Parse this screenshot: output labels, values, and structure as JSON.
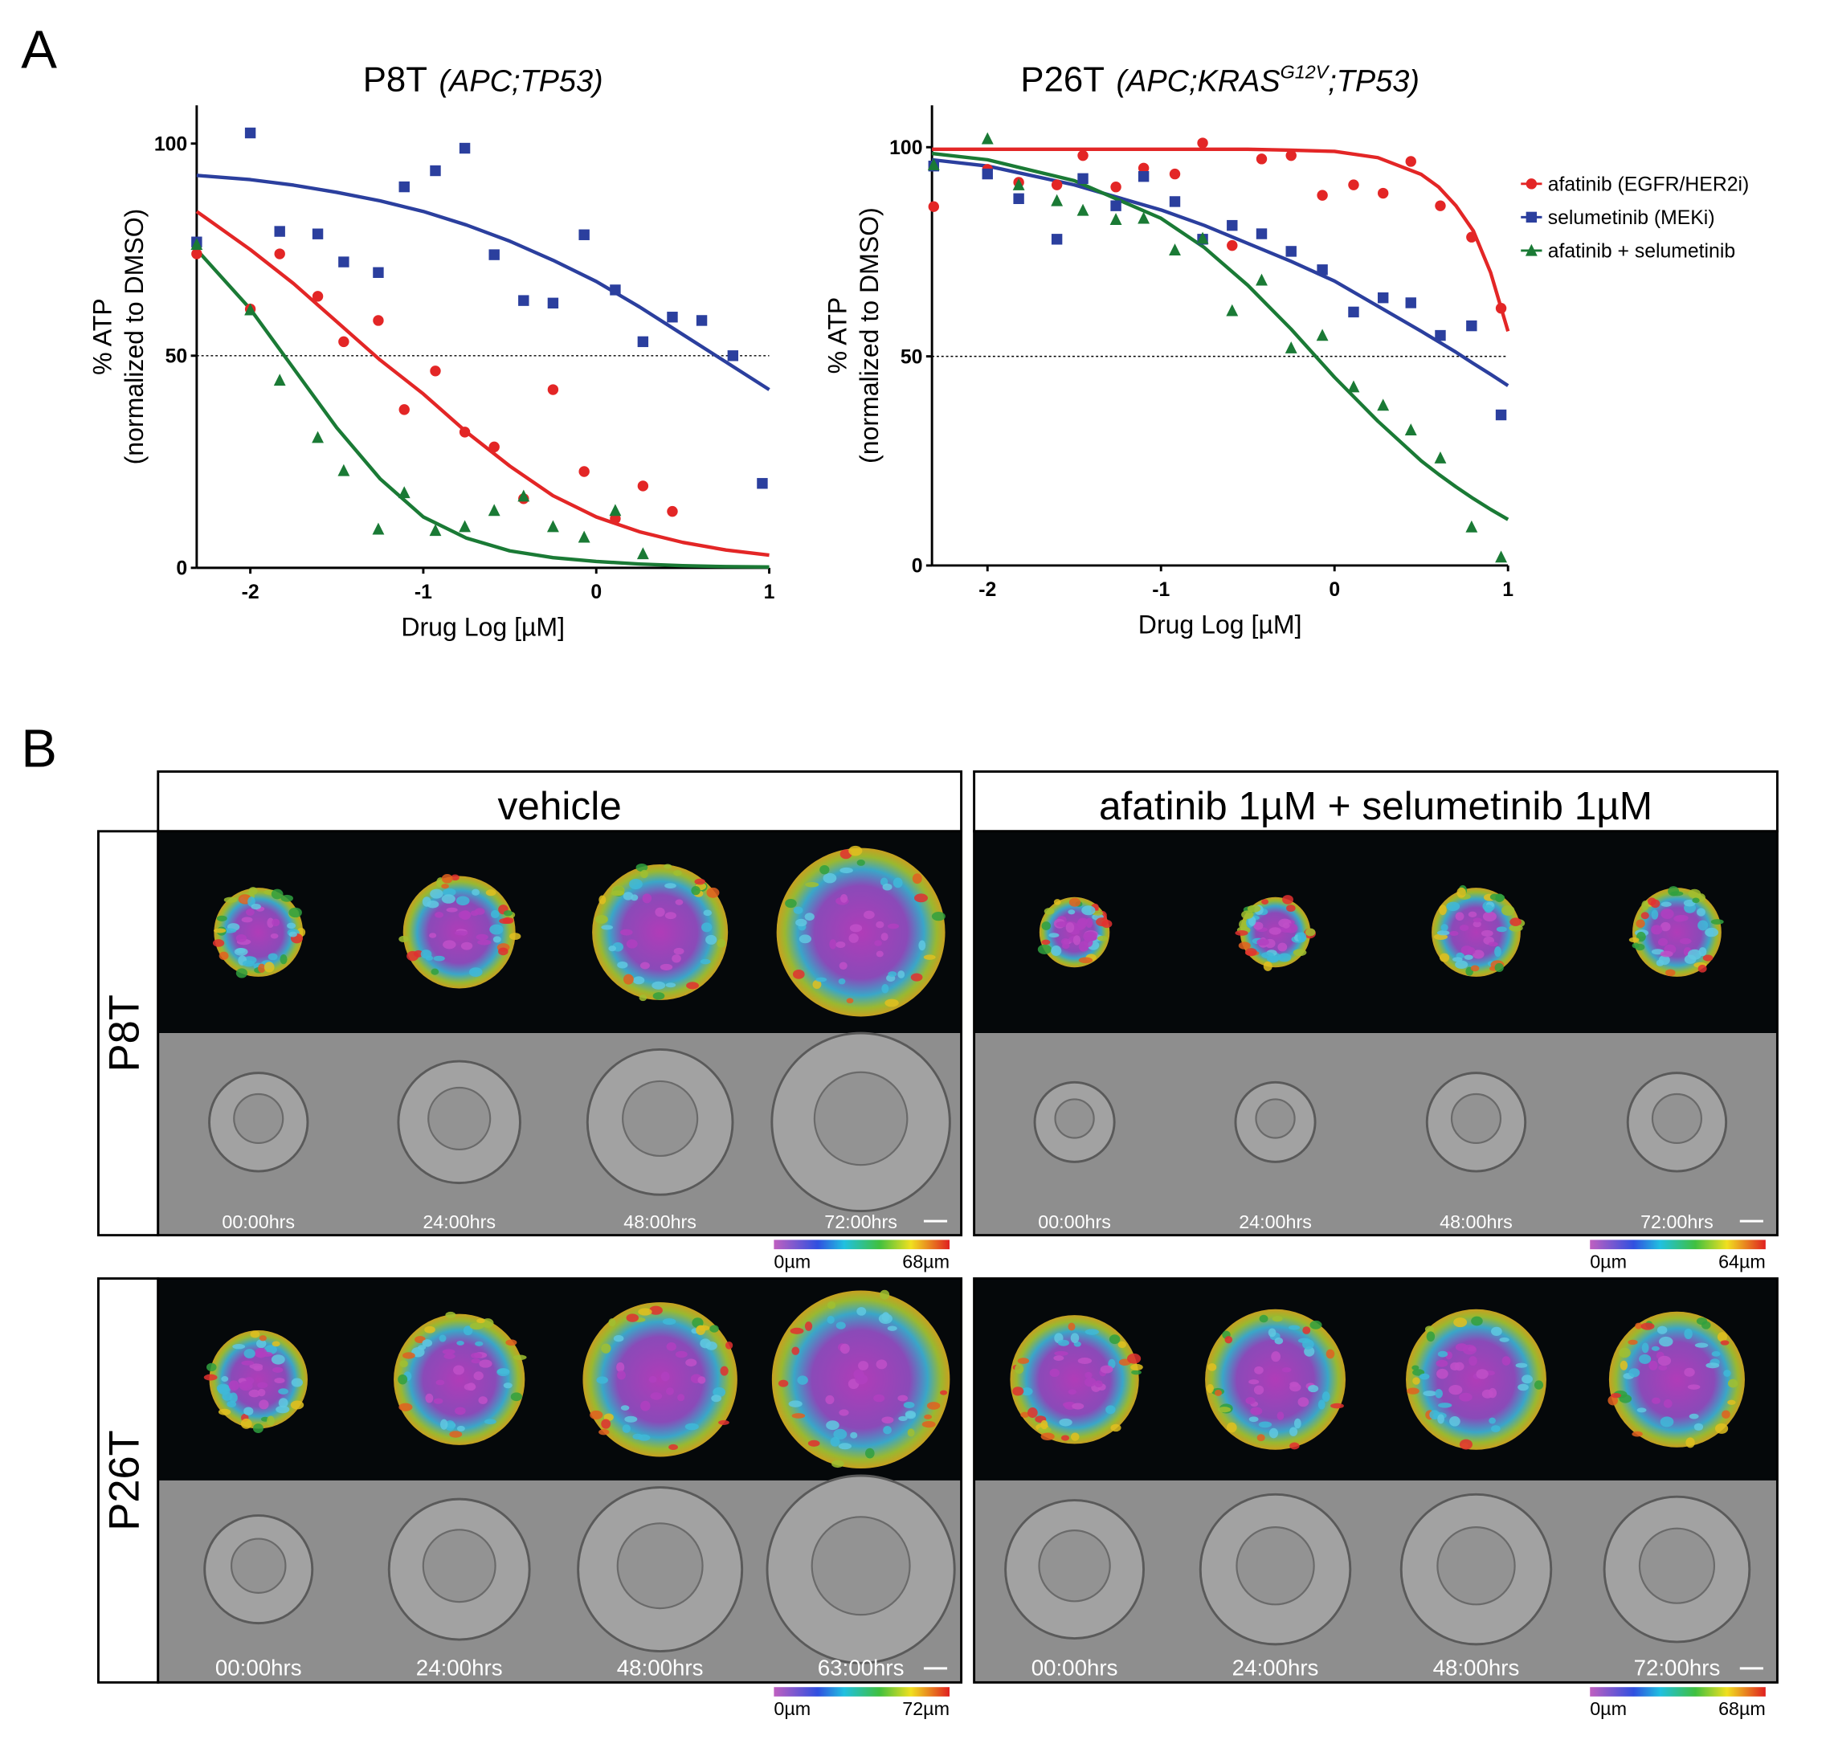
{
  "panel_a": {
    "label": "A"
  },
  "chart_data": [
    {
      "type": "scatter",
      "title": "P8T",
      "genotype": [
        "(APC;TP53)"
      ],
      "y_label": [
        "% ATP",
        "(normalized to DMSO)"
      ],
      "x_label": "Drug Log [µM]",
      "xlim": [
        -2.31,
        1
      ],
      "ylim": [
        0,
        109
      ],
      "xticks": [
        -2,
        -1,
        0,
        1
      ],
      "yticks": [
        0,
        50,
        100
      ],
      "reference_line": 50,
      "x": [
        -2.31,
        -2.0,
        -1.83,
        -1.61,
        -1.46,
        -1.26,
        -1.11,
        -0.93,
        -0.76,
        -0.59,
        -0.42,
        -0.25,
        -0.07,
        0.11,
        0.27,
        0.44,
        0.61,
        0.79,
        0.96
      ],
      "fit_x": [
        -2.31,
        -2.0,
        -1.75,
        -1.5,
        -1.25,
        -1.0,
        -0.75,
        -0.5,
        -0.25,
        0,
        0.25,
        0.5,
        0.75,
        1
      ],
      "series": [
        {
          "name": "afatinib (EGFR/HER2i)",
          "color": "#e32626",
          "marker": "circle",
          "values": [
            74,
            61,
            74,
            64,
            53.3,
            58.3,
            37.3,
            46.4,
            32,
            28.5,
            16.3,
            42,
            22.7,
            11.6,
            19.3,
            13.3,
            null,
            null,
            null
          ],
          "fit": [
            84,
            75,
            67,
            58,
            49,
            41,
            32,
            24,
            17,
            12,
            8.5,
            6,
            4.2,
            3
          ]
        },
        {
          "name": "selumetinib (MEKi)",
          "color": "#2b3f9e",
          "marker": "square",
          "values": [
            76.8,
            102.5,
            79.3,
            78.7,
            72.1,
            69.6,
            89.8,
            93.6,
            98.9,
            73.8,
            63,
            62.4,
            78.5,
            65.5,
            53.3,
            59.1,
            58.3,
            50,
            19.9
          ],
          "fit": [
            92.5,
            91.5,
            90.2,
            88.5,
            86.5,
            84,
            80.8,
            77,
            72.5,
            67.5,
            61.5,
            55,
            48.5,
            42
          ]
        },
        {
          "name": "afatinib + selumetinib",
          "color": "#1a7a35",
          "marker": "triangle",
          "values": [
            76.2,
            60.8,
            44.2,
            30.7,
            22.9,
            9.1,
            17.7,
            8.8,
            9.7,
            13.5,
            16.9,
            9.7,
            7.2,
            13.5,
            3.3,
            null,
            null,
            null,
            null
          ],
          "fit": [
            75,
            61,
            47,
            33,
            21,
            12,
            7,
            4,
            2.4,
            1.5,
            0.9,
            0.5,
            0.3,
            0.2
          ]
        }
      ]
    },
    {
      "type": "scatter",
      "title": "P26T",
      "genotype": [
        "(APC;KRAS",
        "G12V",
        ";TP53)"
      ],
      "y_label": [
        "% ATP",
        "(normalized to DMSO)"
      ],
      "x_label": "Drug Log [µM]",
      "xlim": [
        -2.32,
        1
      ],
      "ylim": [
        0,
        110
      ],
      "xticks": [
        -2,
        -1,
        0,
        1
      ],
      "yticks": [
        0,
        50,
        100
      ],
      "reference_line": 50,
      "legend": "right",
      "x": [
        -2.31,
        -2.0,
        -1.82,
        -1.6,
        -1.45,
        -1.26,
        -1.1,
        -0.92,
        -0.76,
        -0.59,
        -0.42,
        -0.25,
        -0.07,
        0.11,
        0.28,
        0.44,
        0.61,
        0.79,
        0.96
      ],
      "fit_x": [
        -2.32,
        -2.0,
        -1.5,
        -1.0,
        -0.75,
        -0.5,
        -0.25,
        0,
        0.25,
        0.5,
        0.6,
        0.7,
        0.8,
        0.9,
        1
      ],
      "series": [
        {
          "name": "afatinib (EGFR/HER2i)",
          "color": "#e32626",
          "marker": "circle",
          "values": [
            85.8,
            94.7,
            91.6,
            91,
            98,
            90.5,
            95,
            93.6,
            101,
            76.5,
            97.2,
            98,
            88.5,
            91,
            89,
            96.6,
            86,
            78.5,
            61.5
          ],
          "fit": [
            99.5,
            99.5,
            99.5,
            99.5,
            99.5,
            99.5,
            99.3,
            99,
            97.5,
            93.5,
            90.5,
            86,
            80,
            70,
            56
          ]
        },
        {
          "name": "selumetinib (MEKi)",
          "color": "#2b3f9e",
          "marker": "square",
          "values": [
            95.5,
            93.6,
            87.7,
            78,
            92.5,
            86,
            93,
            87,
            78,
            81.3,
            79.3,
            75.1,
            70.7,
            60.6,
            64,
            62.8,
            55,
            57.3,
            36
          ],
          "fit": [
            97,
            95.5,
            91,
            85,
            81.3,
            77,
            72.7,
            68,
            62,
            56,
            53.5,
            51,
            48.3,
            45.7,
            43
          ]
        },
        {
          "name": "afatinib + selumetinib",
          "color": "#1a7a35",
          "marker": "triangle",
          "values": [
            95.8,
            102,
            91,
            87.2,
            84.9,
            82.7,
            83,
            75.4,
            78.2,
            60.9,
            68.2,
            52,
            55,
            42.7,
            38.3,
            32.4,
            25.7,
            9.2,
            2
          ],
          "fit": [
            98.5,
            97,
            92,
            83,
            76,
            67,
            56.5,
            45,
            34.5,
            25,
            21.8,
            18.8,
            16,
            13.4,
            11
          ]
        }
      ]
    }
  ],
  "panel_b": {
    "label": "B",
    "columns": [
      "vehicle",
      "afatinib 1µM + selumetinib 1µM"
    ],
    "rows": [
      {
        "name": "P8T",
        "panels": [
          {
            "times": [
              "00:00hrs",
              "24:00hrs",
              "48:00hrs",
              "72:00hrs"
            ],
            "scale": [
              "0µm",
              "68µm"
            ]
          },
          {
            "times": [
              "00:00hrs",
              "24:00hrs",
              "48:00hrs",
              "72:00hrs"
            ],
            "scale": [
              "0µm",
              "64µm"
            ]
          }
        ]
      },
      {
        "name": "P26T",
        "panels": [
          {
            "times": [
              "00:00hrs",
              "24:00hrs",
              "48:00hrs",
              "63:00hrs"
            ],
            "scale": [
              "0µm",
              "72µm"
            ]
          },
          {
            "times": [
              "00:00hrs",
              "24:00hrs",
              "48:00hrs",
              "72:00hrs"
            ],
            "scale": [
              "0µm",
              "68µm"
            ]
          }
        ]
      }
    ]
  }
}
